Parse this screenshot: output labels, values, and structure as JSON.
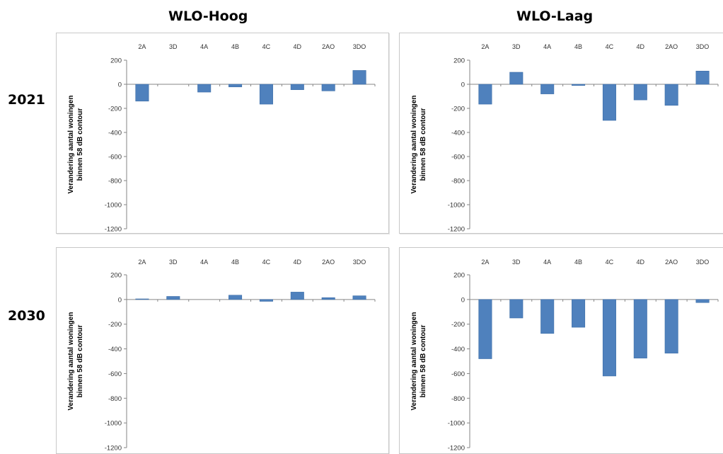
{
  "column_titles": [
    "WLO-Hoog",
    "WLO-Laag"
  ],
  "row_titles": [
    "2021",
    "2030"
  ],
  "chart_data": [
    {
      "type": "bar",
      "title": "",
      "categories": [
        "2A",
        "3D",
        "4A",
        "4B",
        "4C",
        "4D",
        "2AO",
        "3DO"
      ],
      "values": [
        -140,
        0,
        -65,
        -22,
        -165,
        -45,
        -55,
        115
      ],
      "ylim": [
        -1200,
        200
      ],
      "yticks": [
        200,
        0,
        -200,
        -400,
        -600,
        -800,
        -1000,
        -1200
      ],
      "ylabel": [
        "Verandering aantal woningen",
        "binnen 58 dB contour"
      ],
      "color": "#4f81bd"
    },
    {
      "type": "bar",
      "title": "",
      "categories": [
        "2A",
        "3D",
        "4A",
        "4B",
        "4C",
        "4D",
        "2AO",
        "3DO"
      ],
      "values": [
        -165,
        100,
        -80,
        -10,
        -300,
        -130,
        -175,
        110
      ],
      "ylim": [
        -1200,
        200
      ],
      "yticks": [
        200,
        0,
        -200,
        -400,
        -600,
        -800,
        -1000,
        -1200
      ],
      "ylabel": [
        "Verandering aantal woningen",
        "binnen 58 dB contour"
      ],
      "color": "#4f81bd"
    },
    {
      "type": "bar",
      "title": "",
      "categories": [
        "2A",
        "3D",
        "4A",
        "4B",
        "4C",
        "4D",
        "2AO",
        "3DO"
      ],
      "values": [
        5,
        25,
        0,
        35,
        -15,
        60,
        15,
        30
      ],
      "ylim": [
        -1200,
        200
      ],
      "yticks": [
        200,
        0,
        -200,
        -400,
        -600,
        -800,
        -1000,
        -1200
      ],
      "ylabel": [
        "Verandering aantal woningen",
        "binnen 58 dB contour"
      ],
      "color": "#4f81bd"
    },
    {
      "type": "bar",
      "title": "",
      "categories": [
        "2A",
        "3D",
        "4A",
        "4B",
        "4C",
        "4D",
        "2AO",
        "3DO"
      ],
      "values": [
        -480,
        -150,
        -275,
        -225,
        -620,
        -475,
        -435,
        -25
      ],
      "ylim": [
        -1200,
        200
      ],
      "yticks": [
        200,
        0,
        -200,
        -400,
        -600,
        -800,
        -1000,
        -1200
      ],
      "ylabel": [
        "Verandering aantal woningen",
        "binnen 58 dB contour"
      ],
      "color": "#4f81bd"
    }
  ]
}
